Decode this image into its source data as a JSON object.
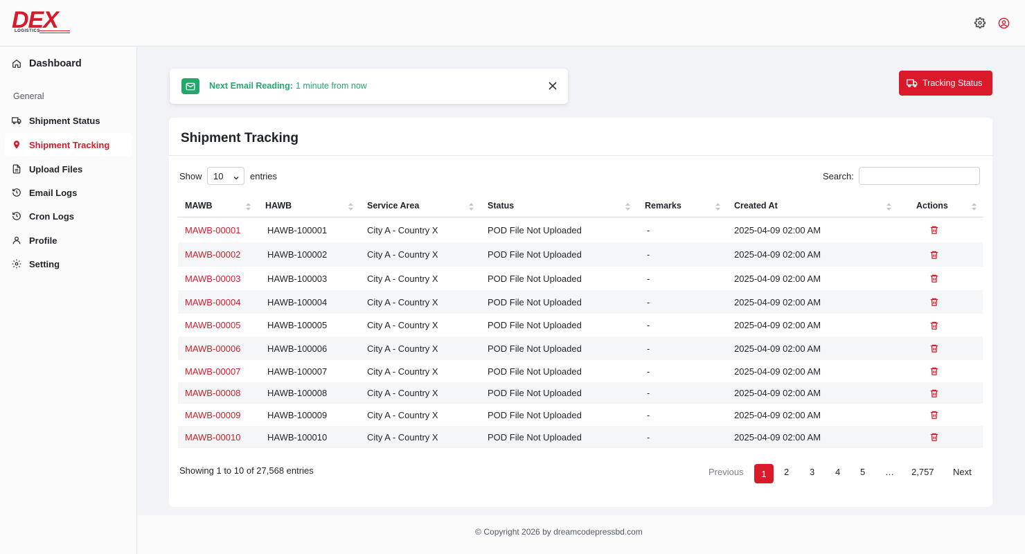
{
  "brand": {
    "name": "DEX",
    "tagline": "LOGISTICS",
    "accent": "#d91a2a"
  },
  "header": {
    "icons": [
      "gear-icon",
      "user-circle-icon"
    ]
  },
  "sidebar": {
    "dashboard": "Dashboard",
    "section": "General",
    "items": [
      {
        "label": "Shipment Status",
        "icon": "truck-icon",
        "active": false
      },
      {
        "label": "Shipment Tracking",
        "icon": "map-pin-icon",
        "active": true
      },
      {
        "label": "Upload Files",
        "icon": "file-icon",
        "active": false
      },
      {
        "label": "Email Logs",
        "icon": "clock-history-icon",
        "active": false
      },
      {
        "label": "Cron Logs",
        "icon": "clock-history-icon",
        "active": false
      },
      {
        "label": "Profile",
        "icon": "user-icon",
        "active": false
      },
      {
        "label": "Setting",
        "icon": "gear-icon",
        "active": false
      }
    ]
  },
  "notice": {
    "label": "Next Email Reading:",
    "value": "1 minute from now",
    "color": "#22a86b"
  },
  "actions": {
    "tracking_status": "Tracking Status"
  },
  "card": {
    "title": "Shipment Tracking",
    "show_label": "Show",
    "page_size": "10",
    "entries_label": "entries",
    "search_label": "Search:",
    "search_value": ""
  },
  "table": {
    "columns": [
      "MAWB",
      "HAWB",
      "Service Area",
      "Status",
      "Remarks",
      "Created At",
      "Actions"
    ],
    "rows": [
      [
        "MAWB-00001",
        "HAWB-100001",
        "City A - Country X",
        "POD File Not Uploaded",
        "-",
        "2025-04-09 02:00 AM"
      ],
      [
        "MAWB-00002",
        "HAWB-100002",
        "City A - Country X",
        "POD File Not Uploaded",
        "-",
        "2025-04-09 02:00 AM"
      ],
      [
        "MAWB-00003",
        "HAWB-100003",
        "City A - Country X",
        "POD File Not Uploaded",
        "-",
        "2025-04-09 02:00 AM"
      ],
      [
        "MAWB-00004",
        "HAWB-100004",
        "City A - Country X",
        "POD File Not Uploaded",
        "-",
        "2025-04-09 02:00 AM"
      ],
      [
        "MAWB-00005",
        "HAWB-100005",
        "City A - Country X",
        "POD File Not Uploaded",
        "-",
        "2025-04-09 02:00 AM"
      ],
      [
        "MAWB-00006",
        "HAWB-100006",
        "City A - Country X",
        "POD File Not Uploaded",
        "-",
        "2025-04-09 02:00 AM"
      ],
      [
        "MAWB-00007",
        "HAWB-100007",
        "City A - Country X",
        "POD File Not Uploaded",
        "-",
        "2025-04-09 02:00 AM"
      ],
      [
        "MAWB-00008",
        "HAWB-100008",
        "City A - Country X",
        "POD File Not Uploaded",
        "-",
        "2025-04-09 02:00 AM"
      ],
      [
        "MAWB-00009",
        "HAWB-100009",
        "City A - Country X",
        "POD File Not Uploaded",
        "-",
        "2025-04-09 02:00 AM"
      ],
      [
        "MAWB-00010",
        "HAWB-100010",
        "City A - Country X",
        "POD File Not Uploaded",
        "-",
        "2025-04-09 02:00 AM"
      ]
    ]
  },
  "pagination": {
    "info": "Showing 1 to 10 of 27,568 entries",
    "previous": "Previous",
    "pages": [
      "1",
      "2",
      "3",
      "4",
      "5"
    ],
    "current": "1",
    "ellipsis": "…",
    "last": "2,757",
    "next": "Next"
  },
  "footer": {
    "copyright": "© Copyright 2026 by dreamcodepressbd.com"
  }
}
